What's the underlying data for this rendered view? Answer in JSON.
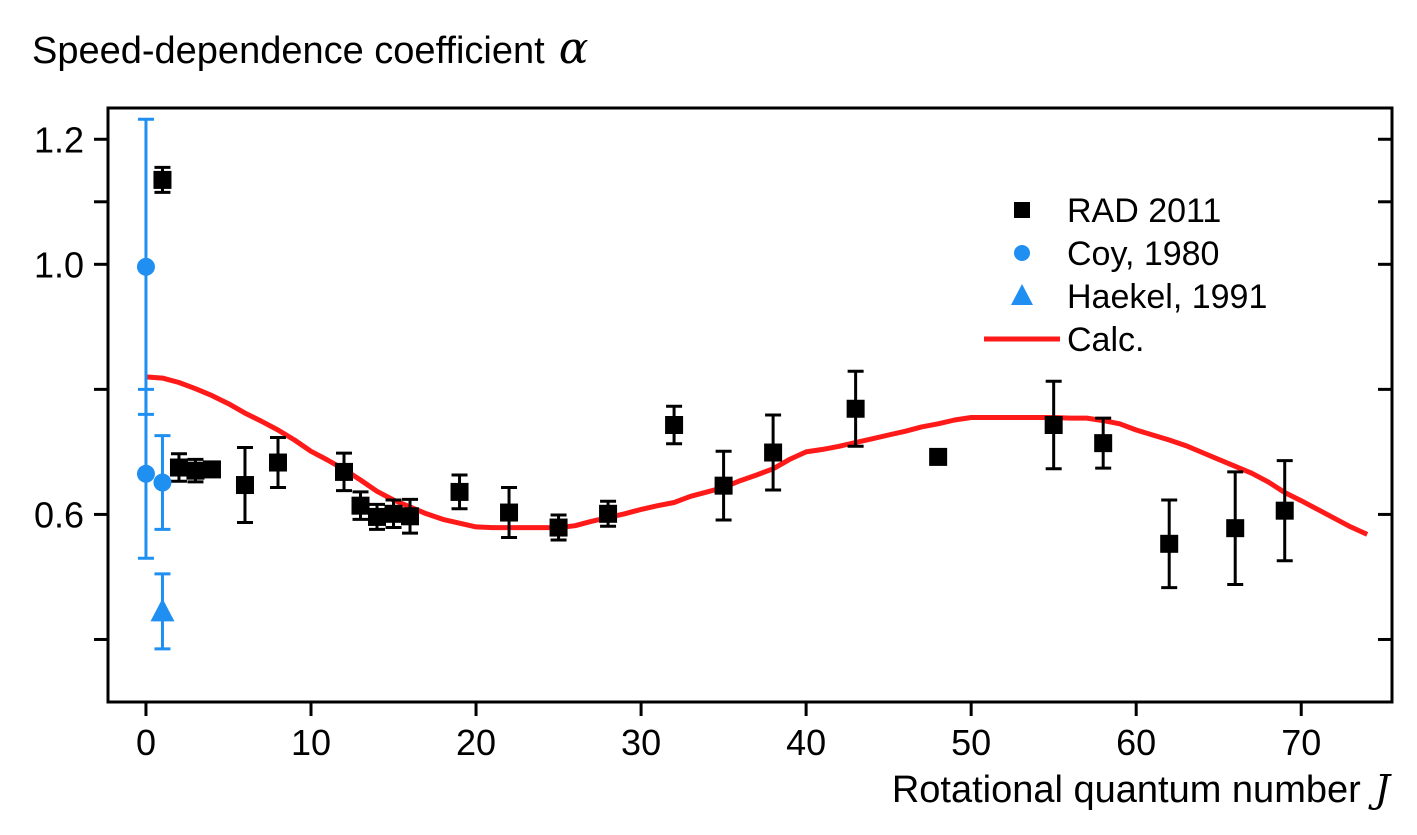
{
  "chart_data": {
    "type": "scatter",
    "ylabel": "Speed-dependence coefficient",
    "ylabel_symbol": "α",
    "xlabel": "Rotational quantum number",
    "xlabel_symbol": "J",
    "xlim": [
      -2.3,
      75.5
    ],
    "ylim": [
      0.3,
      1.25
    ],
    "x_ticks": [
      0,
      10,
      20,
      30,
      40,
      50,
      60,
      70
    ],
    "x_tick_labels": [
      "0",
      "10",
      "20",
      "30",
      "40",
      "50",
      "60",
      "70"
    ],
    "y_ticks_labeled": [
      0.6,
      1.0,
      1.2
    ],
    "y_tick_labels": [
      "0.6",
      "1.0",
      "1.2"
    ],
    "y_ticks_minor": [
      0.4,
      0.8,
      1.1
    ],
    "legend_position": "top-right",
    "series": [
      {
        "name": "RAD 2011",
        "marker": "square",
        "color": "#000000",
        "points": [
          {
            "x": 1,
            "y": 1.135,
            "err": 0.02
          },
          {
            "x": 2,
            "y": 0.675,
            "err": 0.022
          },
          {
            "x": 3,
            "y": 0.67,
            "err": 0.018
          },
          {
            "x": 4,
            "y": 0.672,
            "err": 0
          },
          {
            "x": 6,
            "y": 0.647,
            "err": 0.06
          },
          {
            "x": 8,
            "y": 0.683,
            "err": 0.04
          },
          {
            "x": 12,
            "y": 0.668,
            "err": 0.03
          },
          {
            "x": 13,
            "y": 0.614,
            "err": 0.022
          },
          {
            "x": 14,
            "y": 0.596,
            "err": 0.02
          },
          {
            "x": 15,
            "y": 0.601,
            "err": 0.022
          },
          {
            "x": 16,
            "y": 0.597,
            "err": 0.027
          },
          {
            "x": 19,
            "y": 0.636,
            "err": 0.027
          },
          {
            "x": 22,
            "y": 0.603,
            "err": 0.04
          },
          {
            "x": 25,
            "y": 0.579,
            "err": 0.02
          },
          {
            "x": 28,
            "y": 0.601,
            "err": 0.02
          },
          {
            "x": 32,
            "y": 0.743,
            "err": 0.03
          },
          {
            "x": 35,
            "y": 0.646,
            "err": 0.055
          },
          {
            "x": 38,
            "y": 0.699,
            "err": 0.06
          },
          {
            "x": 43,
            "y": 0.769,
            "err": 0.06
          },
          {
            "x": 48,
            "y": 0.692,
            "err": 0
          },
          {
            "x": 55,
            "y": 0.743,
            "err": 0.07
          },
          {
            "x": 58,
            "y": 0.714,
            "err": 0.04
          },
          {
            "x": 62,
            "y": 0.553,
            "err": 0.07
          },
          {
            "x": 66,
            "y": 0.578,
            "err": 0.09
          },
          {
            "x": 69,
            "y": 0.606,
            "err": 0.08
          }
        ]
      },
      {
        "name": "Coy, 1980",
        "marker": "circle",
        "color": "#1f8ff2",
        "points": [
          {
            "x": 0,
            "y": 0.996,
            "err": 0.236
          },
          {
            "x": 0,
            "y": 0.665,
            "err": 0.135
          },
          {
            "x": 1,
            "y": 0.651,
            "err": 0.075
          }
        ]
      },
      {
        "name": "Haekel, 1991",
        "marker": "triangle",
        "color": "#1f8ff2",
        "points": [
          {
            "x": 1,
            "y": 0.445,
            "err": 0.06
          }
        ]
      },
      {
        "name": "Calc.",
        "marker": "line",
        "color": "#ff1a1a",
        "x": [
          0,
          1,
          2,
          3,
          4,
          5,
          6,
          7,
          8,
          9,
          10,
          11,
          12,
          13,
          14,
          15,
          16,
          17,
          18,
          19,
          20,
          21,
          22,
          23,
          24,
          25,
          26,
          27,
          28,
          29,
          30,
          31,
          32,
          33,
          34,
          35,
          36,
          37,
          38,
          39,
          40,
          41,
          42,
          43,
          44,
          45,
          46,
          47,
          48,
          49,
          50,
          51,
          52,
          53,
          54,
          55,
          56,
          57,
          58,
          59,
          60,
          61,
          62,
          63,
          64,
          65,
          66,
          67,
          68,
          69,
          70,
          71,
          72,
          73,
          74
        ],
        "y": [
          0.82,
          0.818,
          0.811,
          0.801,
          0.79,
          0.777,
          0.762,
          0.749,
          0.735,
          0.719,
          0.701,
          0.687,
          0.672,
          0.655,
          0.637,
          0.623,
          0.612,
          0.601,
          0.592,
          0.586,
          0.58,
          0.579,
          0.579,
          0.579,
          0.579,
          0.579,
          0.582,
          0.589,
          0.595,
          0.601,
          0.608,
          0.614,
          0.619,
          0.629,
          0.636,
          0.643,
          0.654,
          0.663,
          0.673,
          0.688,
          0.7,
          0.704,
          0.709,
          0.715,
          0.721,
          0.727,
          0.733,
          0.74,
          0.745,
          0.751,
          0.755,
          0.755,
          0.755,
          0.755,
          0.755,
          0.755,
          0.754,
          0.754,
          0.75,
          0.745,
          0.735,
          0.727,
          0.719,
          0.71,
          0.699,
          0.688,
          0.677,
          0.666,
          0.652,
          0.635,
          0.622,
          0.608,
          0.594,
          0.58,
          0.568
        ]
      }
    ]
  }
}
